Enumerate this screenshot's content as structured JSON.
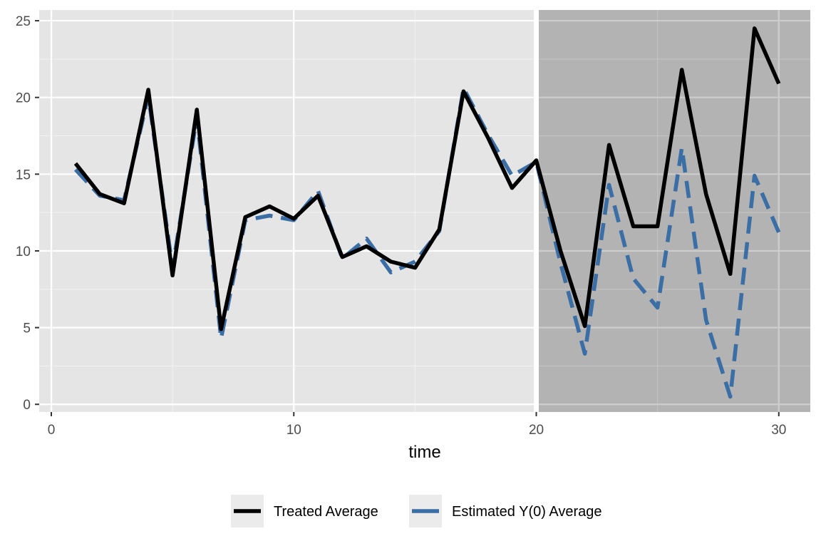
{
  "chart_data": {
    "type": "line",
    "title": "",
    "xlabel": "time",
    "ylabel": "",
    "xlim": [
      -0.5,
      31.3
    ],
    "ylim": [
      -0.5,
      25.7
    ],
    "x_ticks": [
      0,
      10,
      20,
      30
    ],
    "y_ticks": [
      0,
      5,
      10,
      15,
      20,
      25
    ],
    "grid": true,
    "background_color": "#e5e5e5",
    "shaded_region": {
      "x_start": 20,
      "x_end": 31.3,
      "color": "#b3b3b3"
    },
    "vline": {
      "x": 20,
      "color": "#ffffff"
    },
    "x": [
      1,
      2,
      3,
      4,
      5,
      6,
      7,
      8,
      9,
      10,
      11,
      12,
      13,
      14,
      15,
      16,
      17,
      18,
      19,
      20,
      21,
      22,
      23,
      24,
      25,
      26,
      27,
      28,
      29,
      30
    ],
    "series": [
      {
        "name": "Treated Average",
        "color": "#000000",
        "dash": "solid",
        "values": [
          15.7,
          13.7,
          13.1,
          20.5,
          8.4,
          19.2,
          4.9,
          12.2,
          12.9,
          12.1,
          13.6,
          9.6,
          10.3,
          9.3,
          8.9,
          11.4,
          20.4,
          17.4,
          14.1,
          15.9,
          10.0,
          5.1,
          16.9,
          11.6,
          11.6,
          21.8,
          13.7,
          8.5,
          24.5,
          20.9
        ]
      },
      {
        "name": "Estimated Y(0) Average",
        "color": "#3a6ea5",
        "dash": "dashed",
        "values": [
          15.3,
          13.6,
          13.3,
          20.1,
          8.9,
          18.7,
          4.3,
          12.0,
          12.3,
          12.0,
          13.9,
          9.5,
          10.8,
          8.6,
          9.3,
          11.3,
          20.6,
          17.6,
          14.9,
          15.8,
          9.2,
          3.3,
          14.3,
          8.2,
          6.3,
          16.7,
          5.5,
          0.5,
          14.9,
          11.2
        ]
      }
    ],
    "legend": {
      "position": "bottom",
      "entries": [
        "Treated Average",
        "Estimated Y(0) Average"
      ]
    }
  }
}
